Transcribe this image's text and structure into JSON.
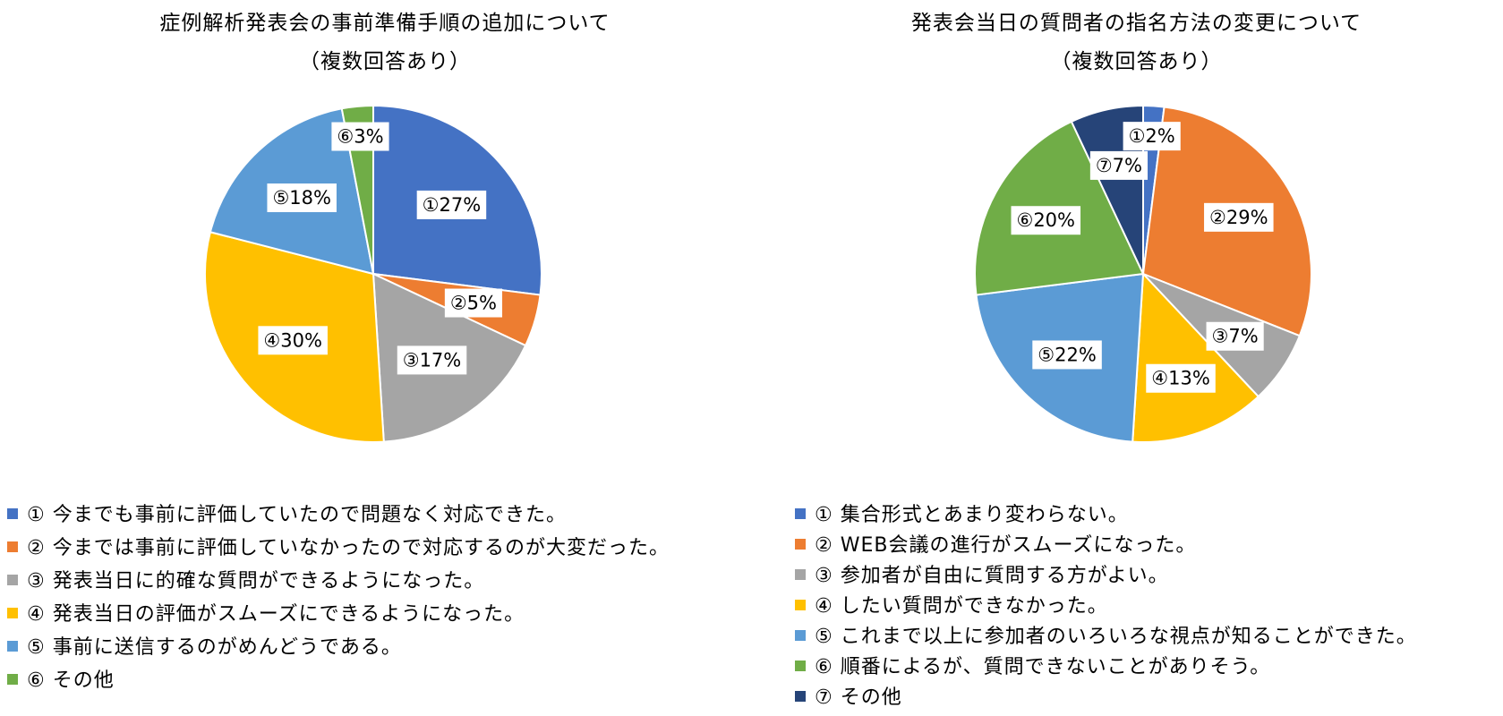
{
  "colors": {
    "c1": "#4472C4",
    "c2": "#ED7D31",
    "c3": "#A5A5A5",
    "c4": "#FFC000",
    "c5": "#5B9BD5",
    "c6": "#70AD47",
    "c7": "#264478"
  },
  "chart_data": [
    {
      "type": "pie",
      "title": "症例解析発表会の事前準備手順の追加について",
      "subtitle": "（複数回答あり）",
      "legend_position": "bottom",
      "slices": [
        {
          "label": "①27%",
          "value": 27,
          "color": "#4472C4",
          "legend": "①  今までも事前に評価していたので問題なく対応できた。"
        },
        {
          "label": "②5%",
          "value": 5,
          "color": "#ED7D31",
          "legend": "②  今までは事前に評価していなかったので対応するのが大変だった。"
        },
        {
          "label": "③17%",
          "value": 17,
          "color": "#A5A5A5",
          "legend": "③  発表当日に的確な質問ができるようになった。"
        },
        {
          "label": "④30%",
          "value": 30,
          "color": "#FFC000",
          "legend": "④  発表当日の評価がスムーズにできるようになった。"
        },
        {
          "label": "⑤18%",
          "value": 18,
          "color": "#5B9BD5",
          "legend": "⑤  事前に送信するのがめんどうである。"
        },
        {
          "label": "⑥3%",
          "value": 3,
          "color": "#70AD47",
          "legend": "⑥  その他"
        }
      ]
    },
    {
      "type": "pie",
      "title": "発表会当日の質問者の指名方法の変更について",
      "subtitle": "（複数回答あり）",
      "legend_position": "bottom",
      "slices": [
        {
          "label": "①2%",
          "value": 2,
          "color": "#4472C4",
          "legend": "①  集合形式とあまり変わらない。"
        },
        {
          "label": "②29%",
          "value": 29,
          "color": "#ED7D31",
          "legend": "②  WEB会議の進行がスムーズになった。"
        },
        {
          "label": "③7%",
          "value": 7,
          "color": "#A5A5A5",
          "legend": "③  参加者が自由に質問する方がよい。"
        },
        {
          "label": "④13%",
          "value": 13,
          "color": "#FFC000",
          "legend": "④  したい質問ができなかった。"
        },
        {
          "label": "⑤22%",
          "value": 22,
          "color": "#5B9BD5",
          "legend": "⑤  これまで以上に参加者のいろいろな視点が知ることができた。"
        },
        {
          "label": "⑥20%",
          "value": 20,
          "color": "#70AD47",
          "legend": "⑥  順番によるが、質問できないことがありそう。"
        },
        {
          "label": "⑦7%",
          "value": 7,
          "color": "#264478",
          "legend": "⑦  その他"
        }
      ]
    }
  ]
}
